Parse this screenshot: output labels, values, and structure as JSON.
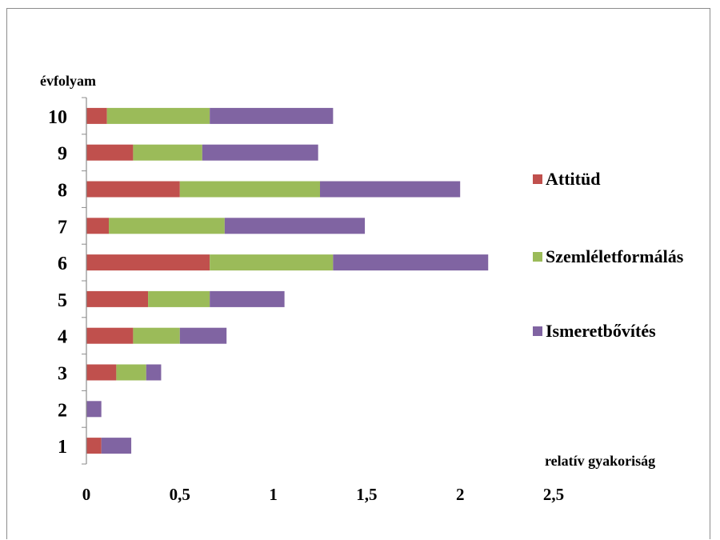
{
  "chart_data": {
    "type": "bar",
    "orientation": "horizontal",
    "stacked": true,
    "title": "",
    "ylabel": "évfolyam",
    "xlabel": "relatív gyakoriság",
    "categories": [
      "1",
      "2",
      "3",
      "4",
      "5",
      "6",
      "7",
      "8",
      "9",
      "10"
    ],
    "x_ticks": [
      "0",
      "0,5",
      "1",
      "1,5",
      "2",
      "2,5"
    ],
    "xlim": [
      0,
      2.5
    ],
    "grid": false,
    "legend_position": "right",
    "series": [
      {
        "name": "Attitüd",
        "color": "#c0504d",
        "values": [
          0.08,
          0,
          0.16,
          0.25,
          0.33,
          0.66,
          0.12,
          0.5,
          0.25,
          0.11
        ]
      },
      {
        "name": "Szemléletformálás",
        "color": "#9bbb59",
        "values": [
          0,
          0,
          0.16,
          0.25,
          0.33,
          0.66,
          0.62,
          0.75,
          0.37,
          0.55
        ]
      },
      {
        "name": "Ismeretbővítés",
        "color": "#8064a2",
        "values": [
          0.16,
          0.08,
          0.08,
          0.25,
          0.4,
          0.83,
          0.75,
          0.75,
          0.62,
          0.66
        ]
      }
    ]
  }
}
